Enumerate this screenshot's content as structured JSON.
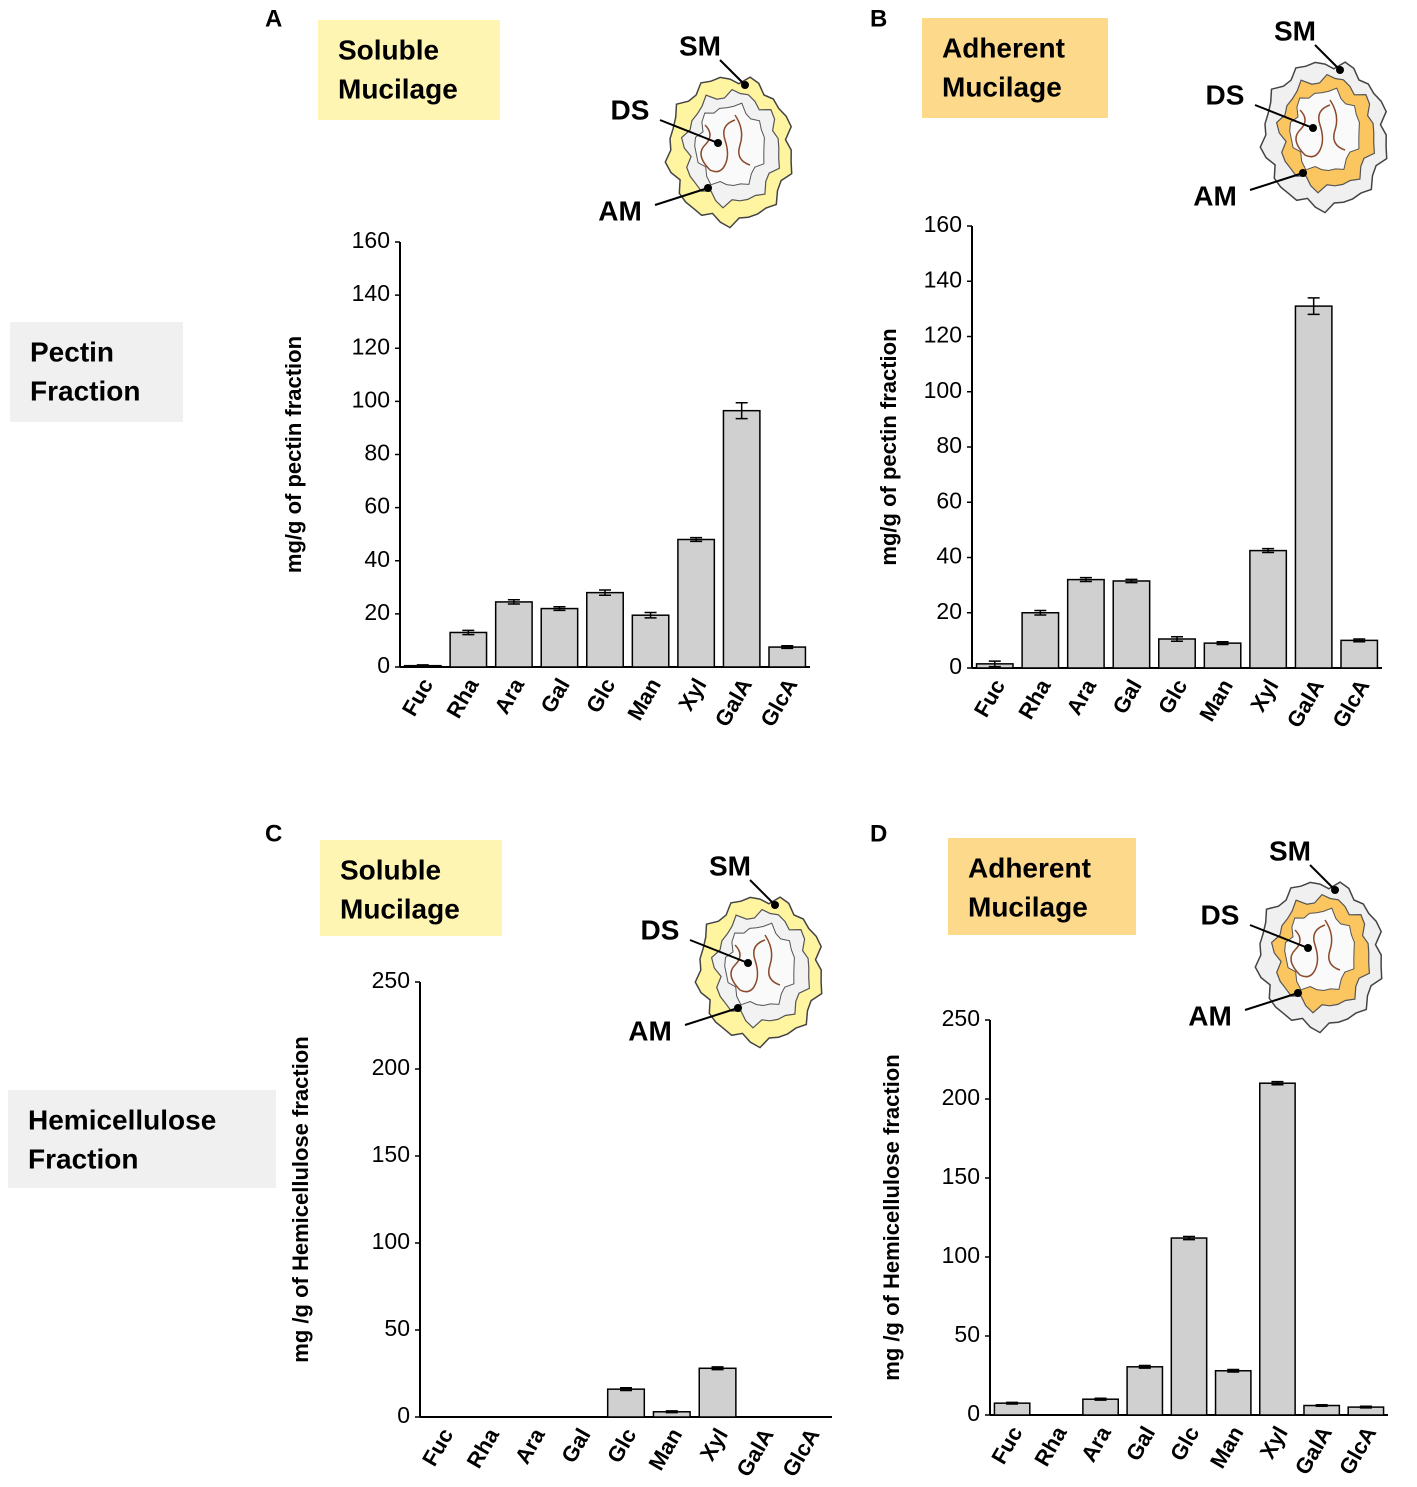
{
  "row_labels": [
    [
      "Pectin",
      "Fraction"
    ],
    [
      "Hemicellulose",
      "Fraction"
    ]
  ],
  "chart_data": [
    {
      "type": "bar",
      "panel": "A",
      "title_lines": [
        "Soluble",
        "Mucilage"
      ],
      "badge_color": "#fff5b3",
      "diagram": "soluble",
      "diagram_labels": [
        "SM",
        "DS",
        "AM"
      ],
      "categories": [
        "Fuc",
        "Rha",
        "Ara",
        "Gal",
        "Glc",
        "Man",
        "Xyl",
        "GalA",
        "GlcA"
      ],
      "y_label": "mg/g of pectin fraction",
      "color": "#d0d0d0",
      "values": [
        0.5,
        13,
        24.5,
        22,
        28,
        19.5,
        48,
        96.5,
        7.5
      ],
      "errors": [
        0.3,
        0.8,
        0.8,
        0.7,
        1,
        1,
        0.7,
        3,
        0.5
      ],
      "ylim": [
        0,
        160
      ],
      "yticks": [
        0,
        20,
        40,
        60,
        80,
        100,
        120,
        140,
        160
      ]
    },
    {
      "type": "bar",
      "panel": "B",
      "title_lines": [
        "Adherent",
        "Mucilage"
      ],
      "badge_color": "#fdd98c",
      "diagram": "adherent",
      "diagram_labels": [
        "SM",
        "DS",
        "AM"
      ],
      "categories": [
        "Fuc",
        "Rha",
        "Ara",
        "Gal",
        "Glc",
        "Man",
        "Xyl",
        "GalA",
        "GlcA"
      ],
      "y_label": "mg/g of pectin fraction",
      "color": "#d0d0d0",
      "values": [
        1.5,
        20,
        32,
        31.5,
        10.5,
        9,
        42.5,
        131,
        10
      ],
      "errors": [
        1,
        0.8,
        0.7,
        0.6,
        0.8,
        0.5,
        0.7,
        3,
        0.5
      ],
      "ylim": [
        0,
        160
      ],
      "yticks": [
        0,
        20,
        40,
        60,
        80,
        100,
        120,
        140,
        160
      ]
    },
    {
      "type": "bar",
      "panel": "C",
      "title_lines": [
        "Soluble",
        "Mucilage"
      ],
      "badge_color": "#fff5b3",
      "diagram": "soluble",
      "diagram_labels": [
        "SM",
        "DS",
        "AM"
      ],
      "categories": [
        "Fuc",
        "Rha",
        "Ara",
        "Gal",
        "Glc",
        "Man",
        "Xyl",
        "GalA",
        "GlcA"
      ],
      "y_label": "mg /g of Hemicellulose fraction",
      "color": "#d0d0d0",
      "values": [
        0,
        0,
        0,
        0,
        16,
        3,
        28,
        0,
        0
      ],
      "errors": [
        0,
        0,
        0,
        0,
        0.8,
        0.5,
        0.8,
        0,
        0
      ],
      "ylim": [
        0,
        250
      ],
      "yticks": [
        0,
        50,
        100,
        150,
        200,
        250
      ]
    },
    {
      "type": "bar",
      "panel": "D",
      "title_lines": [
        "Adherent",
        "Mucilage"
      ],
      "badge_color": "#fdd98c",
      "diagram": "adherent",
      "diagram_labels": [
        "SM",
        "DS",
        "AM"
      ],
      "categories": [
        "Fuc",
        "Rha",
        "Ara",
        "Gal",
        "Glc",
        "Man",
        "Xyl",
        "GalA",
        "GlcA"
      ],
      "y_label": "mg /g of Hemicellulose fraction",
      "color": "#d0d0d0",
      "values": [
        7.5,
        0,
        10,
        30.5,
        112,
        28,
        210,
        6,
        5
      ],
      "errors": [
        0.5,
        0,
        0.6,
        0.8,
        1,
        0.8,
        1,
        0.5,
        0.5
      ],
      "ylim": [
        0,
        250
      ],
      "yticks": [
        0,
        50,
        100,
        150,
        200,
        250
      ]
    }
  ]
}
